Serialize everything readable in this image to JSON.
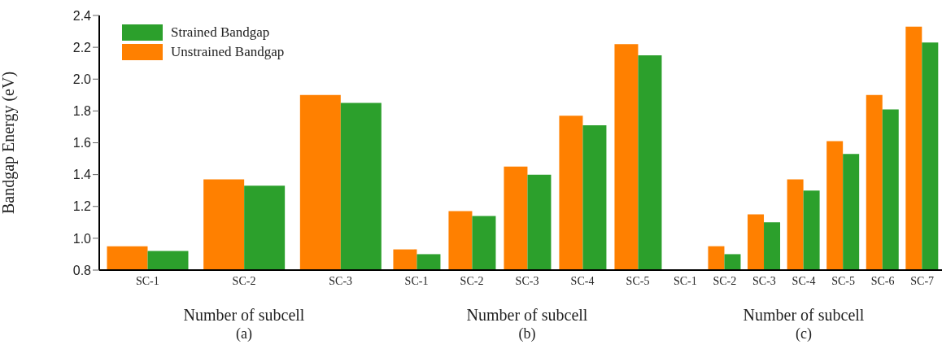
{
  "chart_data": [
    {
      "type": "bar",
      "ylabel": "Bandgap Energy (eV)",
      "xlabel": "Number of subcell",
      "annotations": [
        "(a)"
      ],
      "categories": [
        "SC-1",
        "SC-2",
        "SC-3"
      ],
      "ylim": [
        0.8,
        2.4
      ],
      "yticks": [
        0.8,
        {
          "value": 1,
          "label": "1.0"
        },
        1.2,
        1.4,
        1.6,
        1.8,
        {
          "value": 2,
          "label": "2.0"
        },
        2.2,
        2.4
      ],
      "legend": "top left",
      "series": [
        {
          "name": "Unstrained Bandgap",
          "color": "#ff8000",
          "values": [
            0.95,
            1.37,
            1.9
          ]
        },
        {
          "name": "Strained Bandgap",
          "color": "#2ca02c",
          "values": [
            0.92,
            1.33,
            1.85
          ]
        }
      ]
    },
    {
      "type": "bar",
      "xlabel": "Number of subcell",
      "annotations": [
        "(b)"
      ],
      "categories": [
        "SC-1",
        "SC-2",
        "SC-3",
        "SC-4",
        "SC-5"
      ],
      "ylim": [
        0.8,
        2.4
      ],
      "tick_labels": "x",
      "series": [
        {
          "color": "#ff8000",
          "values": [
            0.93,
            1.17,
            1.45,
            1.77,
            2.22
          ]
        },
        {
          "color": "#2ca02c",
          "values": [
            0.9,
            1.14,
            1.4,
            1.71,
            2.15
          ]
        }
      ]
    },
    {
      "type": "bar",
      "xlabel": "Number of subcell",
      "annotations": [
        "(c)"
      ],
      "categories": [
        "SC-1",
        "SC-2",
        "SC-3",
        "SC-4",
        "SC-5",
        "SC-6",
        "SC-7"
      ],
      "ylim": [
        0.8,
        2.4
      ],
      "tick_labels": "x",
      "series": [
        {
          "color": "#ff8000",
          "values": [
            null,
            0.95,
            1.15,
            1.37,
            1.61,
            1.9,
            2.33
          ]
        },
        {
          "color": "#2ca02c",
          "values": [
            null,
            0.9,
            1.1,
            1.3,
            1.53,
            1.81,
            2.23
          ]
        }
      ]
    }
  ]
}
